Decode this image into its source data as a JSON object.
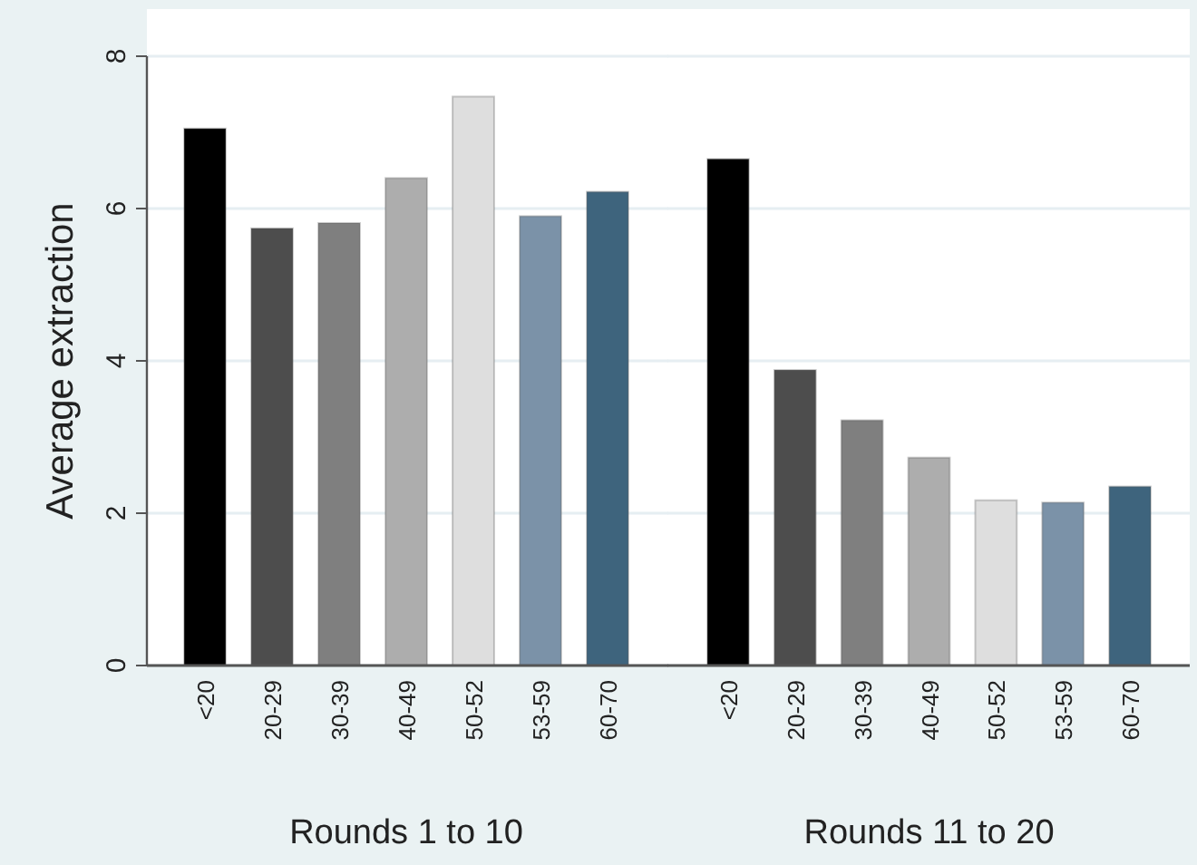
{
  "chart_data": [
    {
      "type": "bar",
      "xlabel": "Rounds 1 to 10",
      "ylabel": "Average extraction",
      "categories": [
        "<20",
        "20-29",
        "30-39",
        "40-49",
        "50-52",
        "53-59",
        "60-70"
      ],
      "values": [
        7.05,
        5.74,
        5.81,
        6.4,
        7.47,
        5.9,
        6.22
      ],
      "colors": [
        "#000000",
        "#4d4d4d",
        "#7f7f7f",
        "#adadad",
        "#dedede",
        "#7b92a8",
        "#3e647d"
      ],
      "ylim": [
        0,
        8
      ],
      "yticks": [
        0,
        2,
        4,
        6,
        8
      ],
      "grid": "y"
    },
    {
      "type": "bar",
      "xlabel": "Rounds 11 to 20",
      "categories": [
        "<20",
        "20-29",
        "30-39",
        "40-49",
        "50-52",
        "53-59",
        "60-70"
      ],
      "values": [
        6.65,
        3.88,
        3.22,
        2.73,
        2.17,
        2.14,
        2.35
      ],
      "colors": [
        "#000000",
        "#4d4d4d",
        "#7f7f7f",
        "#adadad",
        "#dedede",
        "#7b92a8",
        "#3e647d"
      ],
      "ylim": [
        0,
        8
      ],
      "yticks": [
        0,
        2,
        4,
        6,
        8
      ],
      "grid": "y",
      "tick_labels": "x"
    }
  ]
}
